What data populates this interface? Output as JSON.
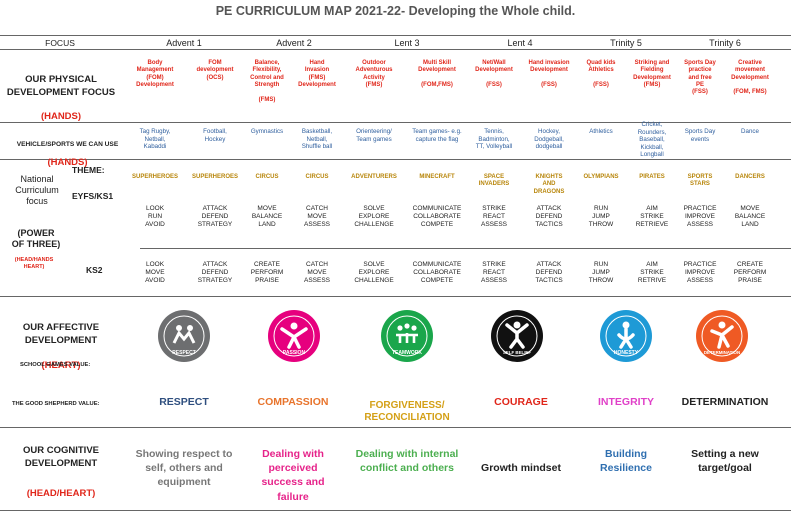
{
  "title": "PE CURRICULUM MAP 2021-22- Developing the Whole child.",
  "header": {
    "focus": "FOCUS",
    "terms": [
      "Advent 1",
      "Advent 2",
      "Lent 3",
      "Lent 4",
      "Trinity 5",
      "Trinity 6"
    ]
  },
  "physical": {
    "label": "OUR PHYSICAL DEVELOPMENT FOCUS",
    "sub": "(HANDS)",
    "cells": [
      "Body\nManagement\n(FOM)\nDevelopment",
      "FOM\ndevelopment\n(OCS)",
      "Balance,\nFlexibility,\nControl and\nStrength\n\n(FMS)",
      "Hand\nInvasion\n(FMS)\nDevelopment",
      "Outdoor\nAdventurous\nActivity\n(FMS)",
      "Multi Skill\nDevelopment\n\n(FOM,FMS)",
      "Net/Wall\nDevelopment\n\n(FSS)",
      "Hand invasion\nDevelopment\n\n(FSS)",
      "Quad kids\nAthletics\n\n(FSS)",
      "Striking and\nFielding\nDevelopment\n(FMS)",
      "Sports Day\npractice\nand free\nPE\n(FSS)",
      "Creative\nmovement\nDevelopment\n\n(FOM, FMS)"
    ]
  },
  "vehicle": {
    "label": "VEHICLE/SPORTS WE CAN USE",
    "sub": "(HANDS)",
    "cells": [
      "Tag Rugby,\nNetball,\nKabaddi",
      "Football,\nHockey",
      "Gymnastics",
      "Basketball,\nNetball,\nShuffle ball",
      "Orienteering/\nTeam games",
      "Team games- e.g.\ncapture the flag",
      "Tennis,\nBadminton,\nTT, Volleyball",
      "Hockey,\nDodgeball,\ndodgeball",
      "Athletics",
      "Cricket,\nRounders,\nBaseball,\nKickball,\nLongball",
      "Sports Day\nevents",
      "Dance"
    ]
  },
  "national": {
    "label1": "National\nCurriculum\nfocus",
    "label2": "(POWER\nOF THREE)",
    "label3": "(HEAD/HANDS\nHEART)",
    "theme_label": "THEME:",
    "eyfs_label": "EYFS/KS1",
    "ks2_label": "KS2",
    "themes": [
      "SUPERHEROES",
      "SUPERHEROES",
      "CIRCUS",
      "CIRCUS",
      "ADVENTURERS",
      "MINECRAFT",
      "SPACE\nINVADERS",
      "KNIGHTS\nAND\nDRAGONS",
      "OLYMPIANS",
      "PIRATES",
      "SPORTS\nSTARS",
      "DANCERS"
    ],
    "eyfs": [
      "LOOK\nRUN\nAVOID",
      "ATTACK\nDEFEND\nSTRATEGY",
      "MOVE\nBALANCE\nLAND",
      "CATCH\nMOVE\nASSESS",
      "SOLVE\nEXPLORE\nCHALLENGE",
      "COMMUNICATE\nCOLLABORATE\nCOMPETE",
      "STRIKE\nREACT\nASSESS",
      "ATTACK\nDEFEND\nTACTICS",
      "RUN\nJUMP\nTHROW",
      "AIM\nSTRIKE\nRETRIEVE",
      "PRACTICE\nIMPROVE\nASSESS",
      "MOVE\nBALANCE\nLAND"
    ],
    "ks2": [
      "LOOK\nMOVE\nAVOID",
      "ATTACK\nDEFEND\nSTRATEGY",
      "CREATE\nPERFORM\nPRAISE",
      "CATCH\nMOVE\nASSESS",
      "SOLVE\nEXPLORE\nCHALLENGE",
      "COMMUNICATE\nCOLLABORATE\nCOMPETE",
      "STRIKE\nREACT\nASSESS",
      "ATTACK\nDEFEND\nTACTICS",
      "RUN\nJUMP\nTHROW",
      "AIM\nSTRIKE\nRETRIVE",
      "PRACTICE\nIMPROVE\nASSESS",
      "CREATE\nPERFORM\nPRAISE"
    ]
  },
  "affective": {
    "label": "OUR AFFECTIVE DEVELOPMENT",
    "sub": "(HEART)",
    "games_label": "SCHOOL GAMES VALUE:",
    "badges": [
      {
        "text": "RESPECT",
        "color": "#6d6e70",
        "icon": "respect-figures-icon"
      },
      {
        "text": "PASSION",
        "color": "#e6007e",
        "icon": "passion-figure-icon"
      },
      {
        "text": "TEAMWORK",
        "color": "#1aa64b",
        "icon": "teamwork-figures-icon"
      },
      {
        "text": "SELF BELIEF",
        "color": "#111111",
        "icon": "self-belief-figure-icon"
      },
      {
        "text": "HONESTY",
        "color": "#1e9ad6",
        "icon": "honesty-figure-icon"
      },
      {
        "text": "DETERMINATION",
        "color": "#ef5a24",
        "icon": "determination-figure-icon"
      }
    ],
    "shepherd_label": "THE GOOD SHEPHERD VALUE:",
    "values": [
      {
        "text": "RESPECT",
        "color": "#2f4f7f"
      },
      {
        "text": "COMPASSION",
        "color": "#e8742c"
      },
      {
        "text": "FORGIVENESS/\nRECONCILIATION",
        "color": "#d4a017"
      },
      {
        "text": "COURAGE",
        "color": "#e0261a"
      },
      {
        "text": "INTEGRITY",
        "color": "#e040c8"
      },
      {
        "text": "DETERMINATION",
        "color": "#222222"
      }
    ]
  },
  "cognitive": {
    "label": "OUR COGNITIVE DEVELOPMENT",
    "sub": "(HEAD/HEART)",
    "cells": [
      {
        "text": "Showing respect to\nself, others and\nequipment",
        "color": "#777777"
      },
      {
        "text": "Dealing with\nperceived\nsuccess and\nfailure",
        "color": "#e6238a"
      },
      {
        "text": "Dealing with internal\nconflict and others",
        "color": "#4caf50"
      },
      {
        "text": "Growth mindset",
        "color": "#222222"
      },
      {
        "text": "Building\nResilience",
        "color": "#2f6fb0"
      },
      {
        "text": "Setting a new\ntarget/goal",
        "color": "#222222"
      }
    ]
  }
}
